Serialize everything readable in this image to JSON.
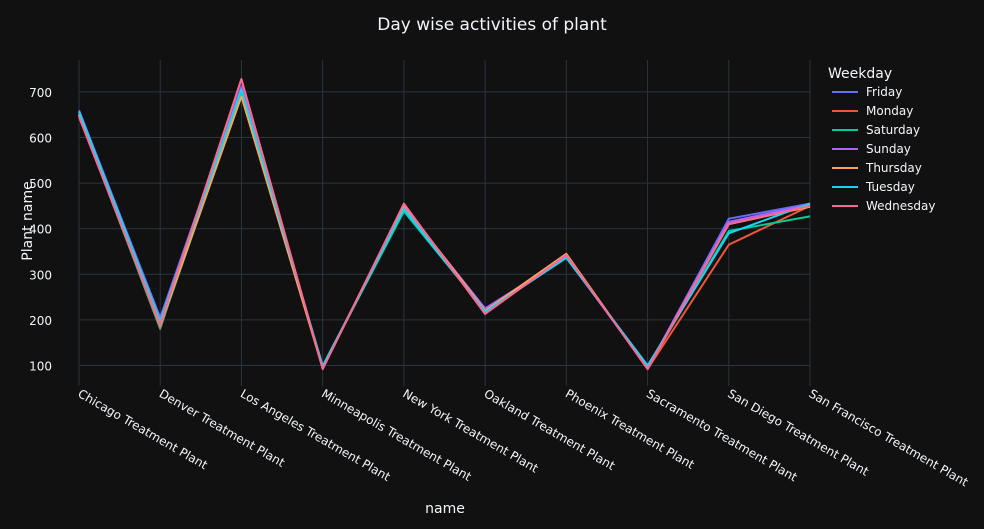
{
  "chart_data": {
    "type": "line",
    "title": "Day wise activities of plant",
    "xlabel": "name",
    "ylabel": "Plant name",
    "ylim": [
      55,
      770
    ],
    "yticks": [
      100,
      200,
      300,
      400,
      500,
      600,
      700
    ],
    "grid": true,
    "legend": {
      "title": "Weekday",
      "placement": "top-right"
    },
    "categories": [
      "Chicago Treatment Plant",
      "Denver Treatment Plant",
      "Los Angeles Treatment Plant",
      "Minneapolis Treatment Plant",
      "New York Treatment Plant",
      "Oakland Treatment Plant",
      "Phoenix Treatment Plant",
      "Sacramento Treatment Plant",
      "San Diego Treatment Plant",
      "San Francisco Treatment Plant"
    ],
    "series": [
      {
        "name": "Friday",
        "color": "#636efa",
        "values": [
          660,
          205,
          712,
          96,
          448,
          222,
          340,
          94,
          422,
          455
        ]
      },
      {
        "name": "Monday",
        "color": "#EF553B",
        "values": [
          652,
          180,
          728,
          93,
          450,
          215,
          344,
          92,
          365,
          450
        ]
      },
      {
        "name": "Saturday",
        "color": "#00cc96",
        "values": [
          648,
          183,
          695,
          98,
          438,
          220,
          340,
          96,
          395,
          427
        ]
      },
      {
        "name": "Sunday",
        "color": "#ab63fa",
        "values": [
          655,
          195,
          708,
          95,
          448,
          225,
          338,
          95,
          415,
          453
        ]
      },
      {
        "name": "Thursday",
        "color": "#FFA15A",
        "values": [
          650,
          188,
          690,
          94,
          452,
          220,
          345,
          93,
          410,
          448
        ]
      },
      {
        "name": "Tuesday",
        "color": "#19d3f3",
        "values": [
          657,
          198,
          705,
          99,
          443,
          218,
          336,
          100,
          390,
          455
        ]
      },
      {
        "name": "Wednesday",
        "color": "#FF6692",
        "values": [
          645,
          190,
          728,
          92,
          455,
          213,
          342,
          92,
          410,
          450
        ]
      }
    ]
  }
}
